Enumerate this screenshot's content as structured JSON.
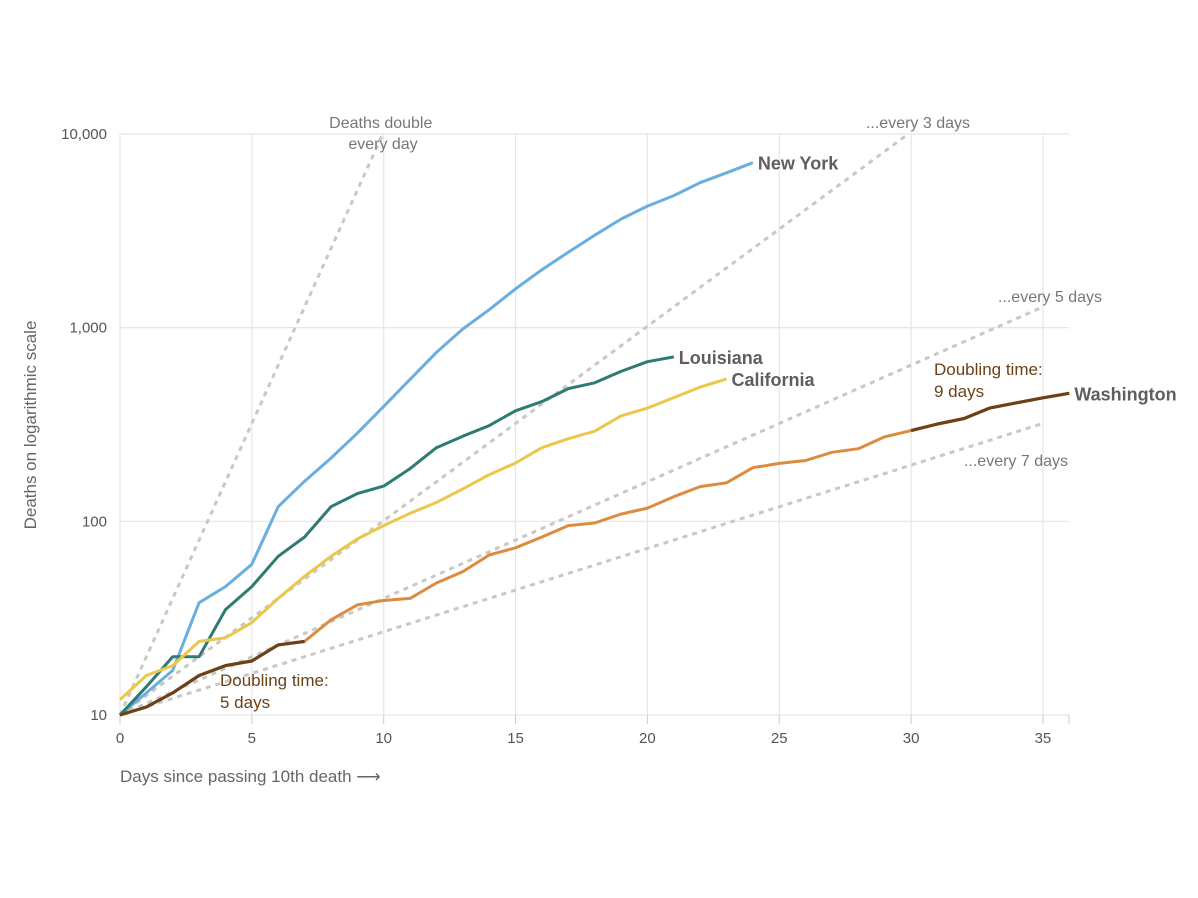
{
  "chart_data": {
    "type": "line",
    "xlabel": "Days since passing 10th death ⟶",
    "ylabel": "Deaths on logarithmic scale",
    "yscale": "log",
    "xlim": [
      0,
      36
    ],
    "ylim": [
      10,
      10000
    ],
    "grid": true,
    "x_ticks": [
      "0",
      "5",
      "10",
      "15",
      "20",
      "25",
      "30",
      "35"
    ],
    "y_ticks": [
      {
        "value": 10,
        "label": "10"
      },
      {
        "value": 100,
        "label": "100"
      },
      {
        "value": 1000,
        "label": "1,000"
      },
      {
        "value": 10000,
        "label": "10,000"
      }
    ],
    "series": [
      {
        "name": "New York",
        "color": "#6aaedf",
        "values": [
          10,
          13,
          17,
          38,
          46,
          60,
          119,
          161,
          212,
          285,
          392,
          541,
          745,
          983,
          1237,
          1585,
          1990,
          2450,
          3000,
          3630,
          4240,
          4800,
          5600,
          6300,
          7100
        ]
      },
      {
        "name": "Louisiana",
        "color": "#2f7b73",
        "values": [
          10,
          14,
          20,
          20,
          35,
          46,
          66,
          83,
          119,
          139,
          152,
          187,
          240,
          275,
          312,
          372,
          415,
          484,
          519,
          594,
          667,
          706
        ]
      },
      {
        "name": "California",
        "color": "#ebc74a",
        "values": [
          12,
          16,
          18,
          24,
          25,
          30,
          40,
          52,
          66,
          81,
          95,
          110,
          125,
          147,
          174,
          200,
          240,
          267,
          292,
          350,
          384,
          435,
          493,
          543
        ]
      },
      {
        "name": "Washington",
        "color": "#dc8c40",
        "highlight_color": "#6b4217",
        "highlight_ranges": [
          [
            0,
            7
          ],
          [
            30,
            36
          ]
        ],
        "values": [
          10,
          11,
          13,
          16,
          18,
          19,
          23,
          24,
          31,
          37,
          39,
          40,
          48,
          55,
          67,
          73,
          83,
          95,
          98,
          109,
          117,
          134,
          151,
          158,
          189,
          199,
          206,
          227,
          237,
          273,
          294,
          318,
          339,
          385,
          409,
          434,
          458
        ]
      }
    ],
    "reference_lines": [
      {
        "doubling_days": 1,
        "end_day": 9.97,
        "label_lines": [
          "Deaths double",
          "every day"
        ]
      },
      {
        "doubling_days": 3,
        "end_day": 29.9,
        "label_lines": [
          "...every 3 days"
        ]
      },
      {
        "doubling_days": 5,
        "end_day": 35,
        "label_lines": [
          "...every 5 days"
        ]
      },
      {
        "doubling_days": 7,
        "end_day": 35,
        "label_lines": [
          "...every 7 days"
        ]
      }
    ],
    "annotations": [
      {
        "lines": [
          "Doubling time:",
          "5 days"
        ]
      },
      {
        "lines": [
          "Doubling time:",
          "9 days"
        ]
      }
    ]
  }
}
